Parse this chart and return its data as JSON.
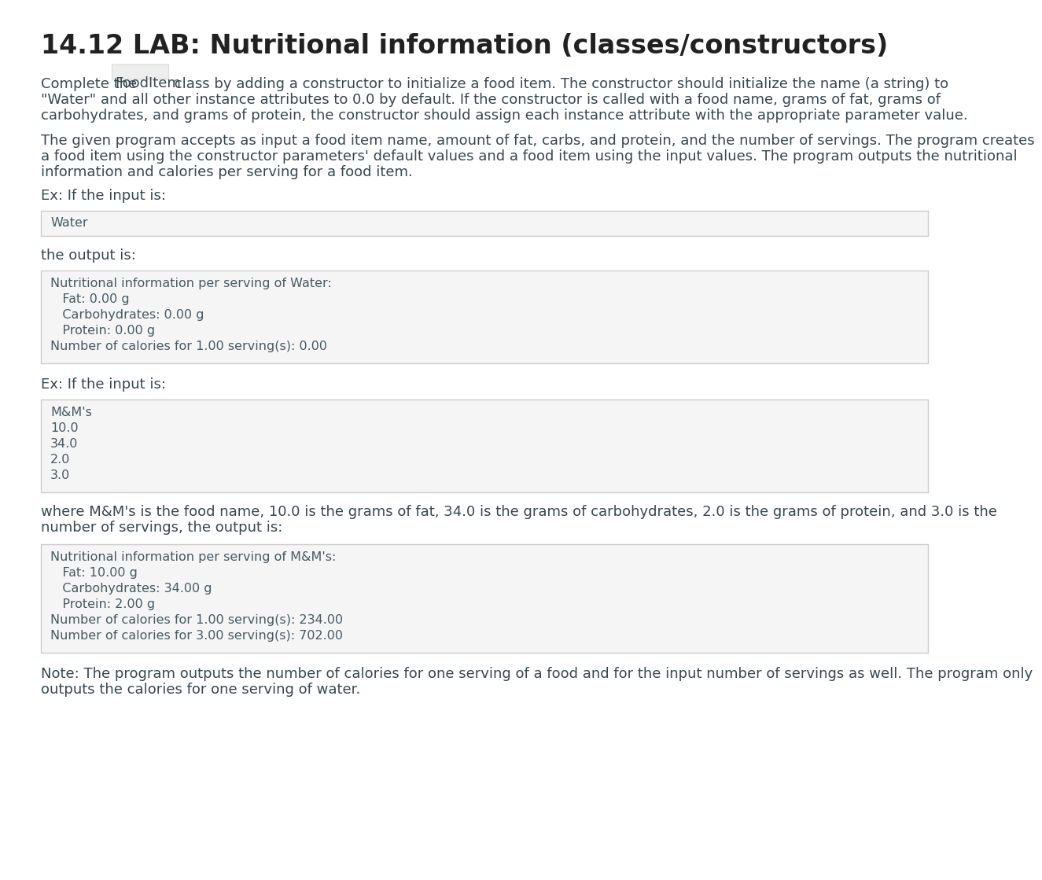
{
  "title": "14.12 LAB: Nutritional information (classes/constructors)",
  "bg_color": "#ffffff",
  "title_color": "#212121",
  "body_text_color": "#37474f",
  "body_font_size": 13.0,
  "title_font_size": 24,
  "paragraph1_pre": "Complete the ",
  "paragraph1_code": "FoodItem",
  "paragraph1_post": " class by adding a constructor to initialize a food item. The constructor should initialize the name (a string) to",
  "paragraph1_line2": "\"Water\" and all other instance attributes to 0.0 by default. If the constructor is called with a food name, grams of fat, grams of",
  "paragraph1_line3": "carbohydrates, and grams of protein, the constructor should assign each instance attribute with the appropriate parameter value.",
  "paragraph2_line1": "The given program accepts as input a food item name, amount of fat, carbs, and protein, and the number of servings. The program creates",
  "paragraph2_line2": "a food item using the constructor parameters' default values and a food item using the input values. The program outputs the nutritional",
  "paragraph2_line3": "information and calories per serving for a food item.",
  "ex1_label": "Ex: If the input is:",
  "ex1_input_box": "Water",
  "ex1_output_label": "the output is:",
  "ex1_output_box_lines": [
    "Nutritional information per serving of Water:",
    "   Fat: 0.00 g",
    "   Carbohydrates: 0.00 g",
    "   Protein: 0.00 g",
    "Number of calories for 1.00 serving(s): 0.00"
  ],
  "ex2_label": "Ex: If the input is:",
  "ex2_input_box_lines": [
    "M&M's",
    "10.0",
    "34.0",
    "2.0",
    "3.0"
  ],
  "ex2_desc_line1": "where M&M's is the food name, 10.0 is the grams of fat, 34.0 is the grams of carbohydrates, 2.0 is the grams of protein, and 3.0 is the",
  "ex2_desc_line2": "number of servings, the output is:",
  "ex2_output_box_lines": [
    "Nutritional information per serving of M&M's:",
    "   Fat: 10.00 g",
    "   Carbohydrates: 34.00 g",
    "   Protein: 2.00 g",
    "Number of calories for 1.00 serving(s): 234.00",
    "Number of calories for 3.00 serving(s): 702.00"
  ],
  "note_line1": "Note: The program outputs the number of calories for one serving of a food and for the input number of servings as well. The program only",
  "note_line2": "outputs the calories for one serving of water.",
  "code_box_bg": "#f5f5f5",
  "code_box_border": "#cccccc",
  "code_text_color": "#455a64",
  "mono_font_size": 11.5,
  "inline_code_bg": "#eeeeee",
  "inline_code_border": "#cccccc"
}
